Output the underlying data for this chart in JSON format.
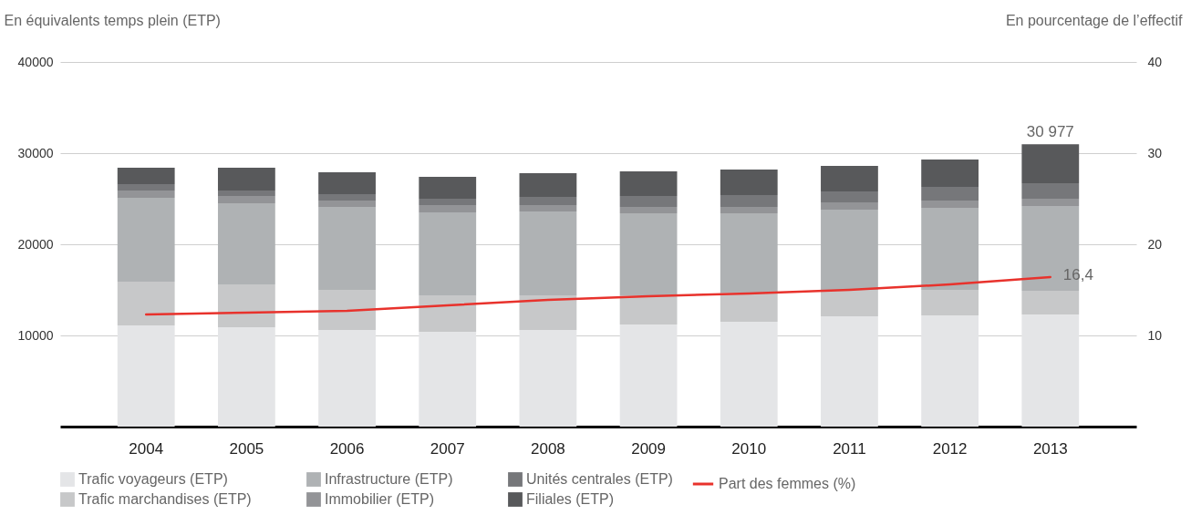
{
  "chart_data": {
    "type": "bar",
    "stacked": true,
    "ylabel": "En équivalents temps plein (ETP)",
    "y2label": "En pourcentage de l’effectif",
    "categories": [
      "2004",
      "2005",
      "2006",
      "2007",
      "2008",
      "2009",
      "2010",
      "2011",
      "2012",
      "2013"
    ],
    "series": [
      {
        "name": "Trafic voyageurs (ETP)",
        "color": "#e4e5e7",
        "values": [
          11100,
          10900,
          10600,
          10400,
          10600,
          11200,
          11500,
          12100,
          12200,
          12300
        ]
      },
      {
        "name": "Trafic marchandises (ETP)",
        "color": "#c7c8c9",
        "values": [
          4800,
          4700,
          4400,
          4000,
          3800,
          3200,
          3200,
          2900,
          2800,
          2600
        ]
      },
      {
        "name": "Infrastructure (ETP)",
        "color": "#afb2b4",
        "values": [
          9200,
          8900,
          9100,
          9100,
          9200,
          9000,
          8700,
          8800,
          9000,
          9300
        ]
      },
      {
        "name": "Immobilier (ETP)",
        "color": "#939497",
        "values": [
          800,
          800,
          700,
          800,
          700,
          700,
          700,
          800,
          800,
          800
        ]
      },
      {
        "name": "Unités centrales (ETP)",
        "color": "#76777a",
        "values": [
          700,
          600,
          700,
          700,
          900,
          1200,
          1300,
          1200,
          1500,
          1700
        ]
      },
      {
        "name": "Filiales (ETP)",
        "color": "#58595b",
        "values": [
          1800,
          2500,
          2400,
          2400,
          2600,
          2700,
          2800,
          2800,
          3000,
          4277
        ]
      },
      {
        "name": "Part des femmes (%)",
        "color": "#e8322c",
        "type": "line",
        "axis": "y2",
        "values": [
          12.3,
          12.5,
          12.7,
          13.3,
          13.9,
          14.3,
          14.6,
          15.0,
          15.6,
          16.4
        ],
        "value_labels": [
          null,
          null,
          null,
          null,
          null,
          null,
          null,
          null,
          null,
          "16,4"
        ]
      }
    ],
    "totals": [
      null,
      null,
      null,
      null,
      null,
      null,
      null,
      null,
      null,
      "30 977"
    ],
    "ylim": [
      0,
      40000
    ],
    "yticks": [
      10000,
      20000,
      30000,
      40000
    ],
    "y2lim": [
      0,
      40
    ],
    "y2ticks": [
      10,
      20,
      30,
      40
    ],
    "grid": "y",
    "legend": "bottom"
  }
}
